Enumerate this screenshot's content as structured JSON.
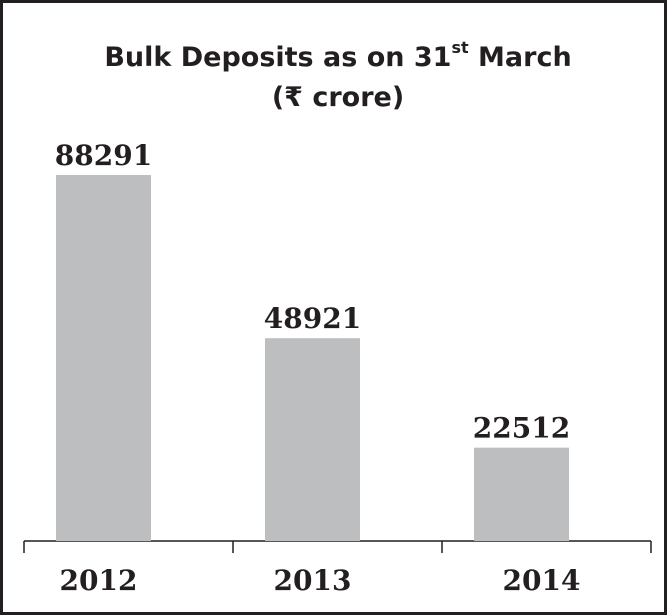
{
  "chart_data": {
    "type": "bar",
    "title": [
      "Bulk Deposits as on 31",
      "st",
      " March"
    ],
    "subtitle": "(₹ crore)",
    "categories": [
      "2012",
      "2013",
      "2014"
    ],
    "values": [
      88291,
      48921,
      22512
    ],
    "color": "#bcbec0"
  }
}
